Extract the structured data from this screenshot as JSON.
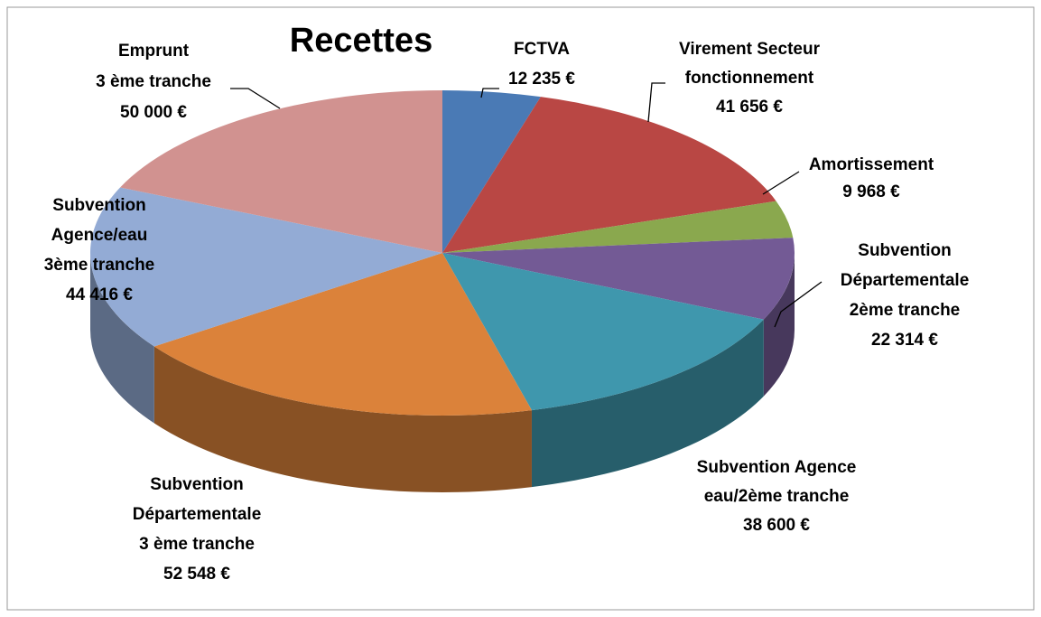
{
  "chart_data": {
    "type": "pie3d",
    "title": "Recettes",
    "categories": [
      [
        "FCTVA"
      ],
      [
        "Virement Secteur",
        "fonctionnement"
      ],
      [
        "Amortissement"
      ],
      [
        "Subvention",
        "Départementale",
        "2ème tranche"
      ],
      [
        "Subvention Agence",
        "eau/2ème tranche"
      ],
      [
        "Subvention",
        "Départementale",
        "3 ème tranche"
      ],
      [
        "Subvention",
        "Agence/eau",
        "3ème  tranche"
      ],
      [
        "Emprunt",
        "3 ème tranche"
      ]
    ],
    "values": [
      12235,
      41656,
      9968,
      22314,
      38600,
      52548,
      44416,
      50000
    ],
    "value_labels": [
      "12 235 €",
      "41 656 €",
      "9 968 €",
      "22 314 €",
      "38 600 €",
      "52 548 €",
      "44 416 €",
      "50 000 €"
    ],
    "colors": [
      "#4a7ab5",
      "#b94744",
      "#8aa84e",
      "#735a95",
      "#3f97ad",
      "#db823a",
      "#93abd5",
      "#d19290"
    ]
  }
}
